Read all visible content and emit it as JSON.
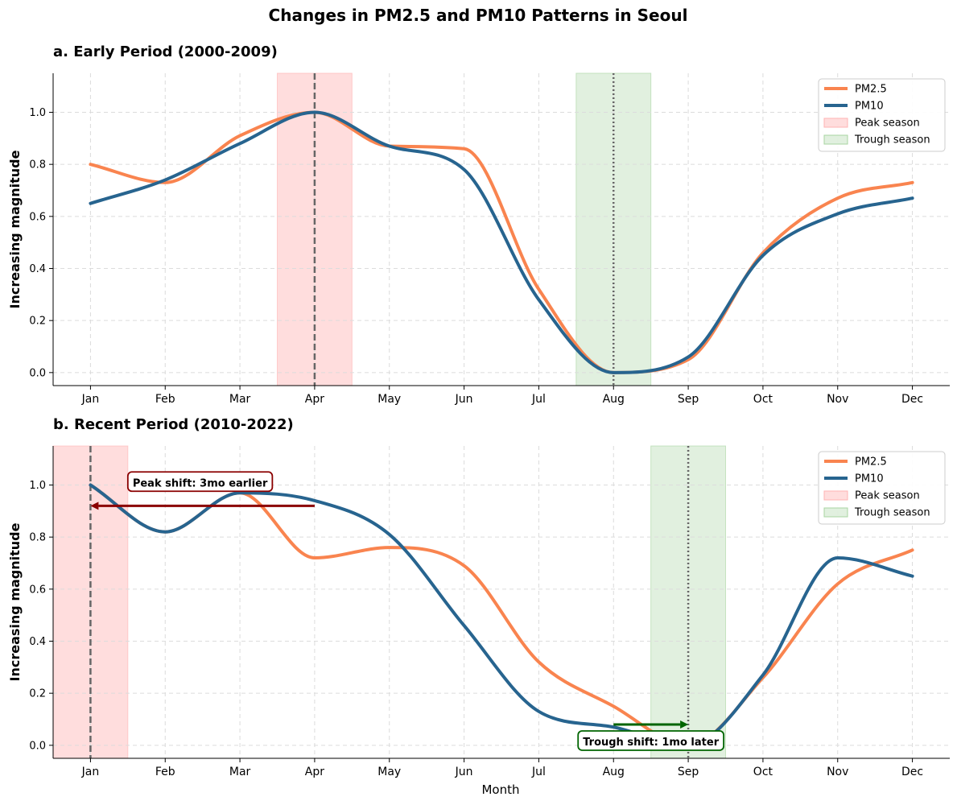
{
  "suptitle": "Changes in PM2.5 and PM10 Patterns in Seoul",
  "xlabel": "Month",
  "colors": {
    "pm25": "#f9844f",
    "pm10": "#27648f",
    "peak_fill": "#ffb3b3",
    "trough_fill": "#a8d5a2",
    "peak_arrow": "#8b0000",
    "trough_arrow": "#006400",
    "guide": "#666666"
  },
  "chart_data": [
    {
      "type": "line",
      "title": "a. Early Period (2000-2009)",
      "xlabel": "",
      "ylabel": "Increasing magnitude",
      "categories": [
        "Jan",
        "Feb",
        "Mar",
        "Apr",
        "May",
        "Jun",
        "Jul",
        "Aug",
        "Sep",
        "Oct",
        "Nov",
        "Dec"
      ],
      "ylim": [
        -0.05,
        1.15
      ],
      "yticks": [
        "0.0",
        "0.2",
        "0.4",
        "0.6",
        "0.8",
        "1.0"
      ],
      "grid": true,
      "legend_position": "top-right",
      "series": [
        {
          "name": "PM2.5",
          "values": [
            0.8,
            0.73,
            0.91,
            1.0,
            0.87,
            0.86,
            0.32,
            0.0,
            0.05,
            0.46,
            0.67,
            0.73
          ]
        },
        {
          "name": "PM10",
          "values": [
            0.65,
            0.74,
            0.88,
            1.0,
            0.87,
            0.78,
            0.28,
            0.0,
            0.06,
            0.45,
            0.61,
            0.67
          ]
        }
      ],
      "peak_season": {
        "label": "Peak season",
        "from": 2.5,
        "to": 3.5,
        "marker": 3
      },
      "trough_season": {
        "label": "Trough season",
        "from": 6.5,
        "to": 7.5,
        "marker": 7
      }
    },
    {
      "type": "line",
      "title": "b. Recent Period (2010-2022)",
      "xlabel": "Month",
      "ylabel": "Increasing magnitude",
      "categories": [
        "Jan",
        "Feb",
        "Mar",
        "Apr",
        "May",
        "Jun",
        "Jul",
        "Aug",
        "Sep",
        "Oct",
        "Nov",
        "Dec"
      ],
      "ylim": [
        -0.05,
        1.15
      ],
      "yticks": [
        "0.0",
        "0.2",
        "0.4",
        "0.6",
        "0.8",
        "1.0"
      ],
      "grid": true,
      "legend_position": "top-right",
      "series": [
        {
          "name": "PM2.5",
          "values": [
            1.0,
            0.82,
            0.97,
            0.72,
            0.76,
            0.69,
            0.32,
            0.15,
            0.0,
            0.26,
            0.62,
            0.75
          ]
        },
        {
          "name": "PM10",
          "values": [
            1.0,
            0.82,
            0.97,
            0.94,
            0.81,
            0.46,
            0.13,
            0.07,
            0.0,
            0.27,
            0.72,
            0.65
          ]
        }
      ],
      "peak_season": {
        "label": "Peak season",
        "from": -0.5,
        "to": 0.5,
        "marker": 0
      },
      "trough_season": {
        "label": "Trough season",
        "from": 7.5,
        "to": 8.5,
        "marker": 8
      },
      "annotations": [
        {
          "text": "Peak shift: 3mo earlier",
          "arrow_from": [
            3,
            0.92
          ],
          "arrow_to": [
            0,
            0.92
          ],
          "box_at": [
            0.5,
            1.01
          ]
        },
        {
          "text": "Trough shift: 1mo later",
          "arrow_from": [
            7,
            0.08
          ],
          "arrow_to": [
            8,
            0.08
          ],
          "box_at": [
            7.5,
            0.015
          ]
        }
      ]
    }
  ]
}
